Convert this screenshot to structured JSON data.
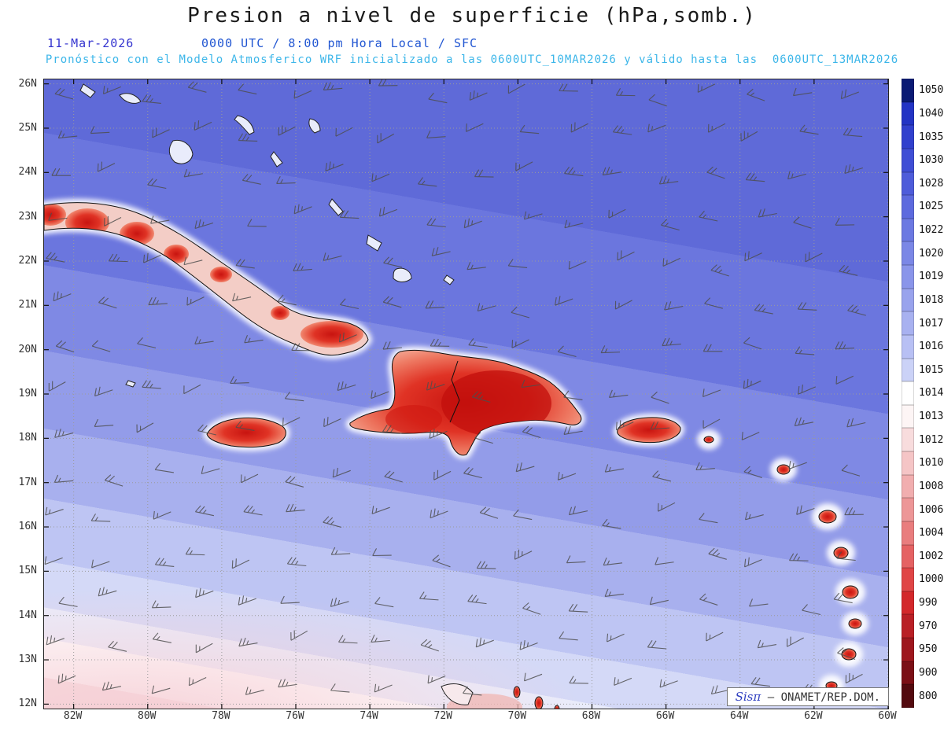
{
  "header": {
    "title": "Presion a nivel de superficie (hPa,somb.)",
    "date": "11-Mar-2026",
    "time": "0000 UTC / 8:00 pm Hora Local / SFC",
    "forecast": "Pronóstico con el Modelo Atmosferico WRF inicializado a las 0600UTC_10MAR2026 y válido hasta las  0600UTC_13MAR2026"
  },
  "axes": {
    "lat_labels": [
      "26N",
      "25N",
      "24N",
      "23N",
      "22N",
      "21N",
      "20N",
      "19N",
      "18N",
      "17N",
      "16N",
      "15N",
      "14N",
      "13N",
      "12N"
    ],
    "lon_labels": [
      "82W",
      "80W",
      "78W",
      "76W",
      "74W",
      "72W",
      "70W",
      "68W",
      "66W",
      "64W",
      "62W",
      "60W"
    ]
  },
  "attribution": {
    "brand": "Sisπ",
    "dash": "–",
    "source": "ONAMET/REP.DOM."
  },
  "chart_data": {
    "type": "heatmap",
    "title": "Presion a nivel de superficie (hPa,somb.)",
    "field": "sea-level pressure (hPa), shaded, with wind barbs and coastlines",
    "valid": "11-Mar-2026 0000 UTC / 8:00 pm Hora Local / SFC",
    "model_run": "WRF inicializado 0600UTC_10MAR2026, válido hasta 0600UTC_13MAR2026",
    "x_axis": {
      "tick_labels": [
        "82W",
        "80W",
        "78W",
        "76W",
        "74W",
        "72W",
        "70W",
        "68W",
        "66W",
        "64W",
        "62W",
        "60W"
      ],
      "range_deg_west": [
        82.8,
        60
      ]
    },
    "y_axis": {
      "tick_labels": [
        "26N",
        "25N",
        "24N",
        "23N",
        "22N",
        "21N",
        "20N",
        "19N",
        "18N",
        "17N",
        "16N",
        "15N",
        "14N",
        "13N",
        "12N"
      ],
      "range_deg_north": [
        11.9,
        26.1
      ]
    },
    "colorbar_levels_hpa": [
      1050,
      1040,
      1035,
      1030,
      1028,
      1025,
      1022,
      1020,
      1019,
      1018,
      1017,
      1016,
      1015,
      1014,
      1013,
      1012,
      1010,
      1008,
      1006,
      1004,
      1002,
      1000,
      990,
      970,
      950,
      900,
      800
    ],
    "colorbar_colors": [
      "#0a1b74",
      "#2334c4",
      "#3140cd",
      "#3f4ed5",
      "#4e5cda",
      "#5d6ade",
      "#6c79e2",
      "#7b87e6",
      "#8a95ea",
      "#99a3ed",
      "#a8b1f0",
      "#b8c0f4",
      "#cbd2f7",
      "#ffffff",
      "#fdf5f5",
      "#f8dcdd",
      "#f5c5c6",
      "#f1aeaf",
      "#ed9697",
      "#e97d7e",
      "#e56263",
      "#e04546",
      "#d3282b",
      "#b92026",
      "#9e171e",
      "#7b0f16",
      "#530a0f"
    ],
    "legend_position": "right",
    "grid": "dotted lat/lon grid, 1° latitude / 2° longitude",
    "pressure_pattern": "High-pressure ridge ~1020-1025 hPa across the north (dark blue), decreasing southwestward to ~1013-1014 hPa (white) near 13-15N with ~1012 hPa (pale pink) in the far southwest; heat lows ~1000-1008 hPa (red shading) over Cuba, Jamaica, Hispaniola, Puerto Rico and the Lesser Antilles"
  }
}
